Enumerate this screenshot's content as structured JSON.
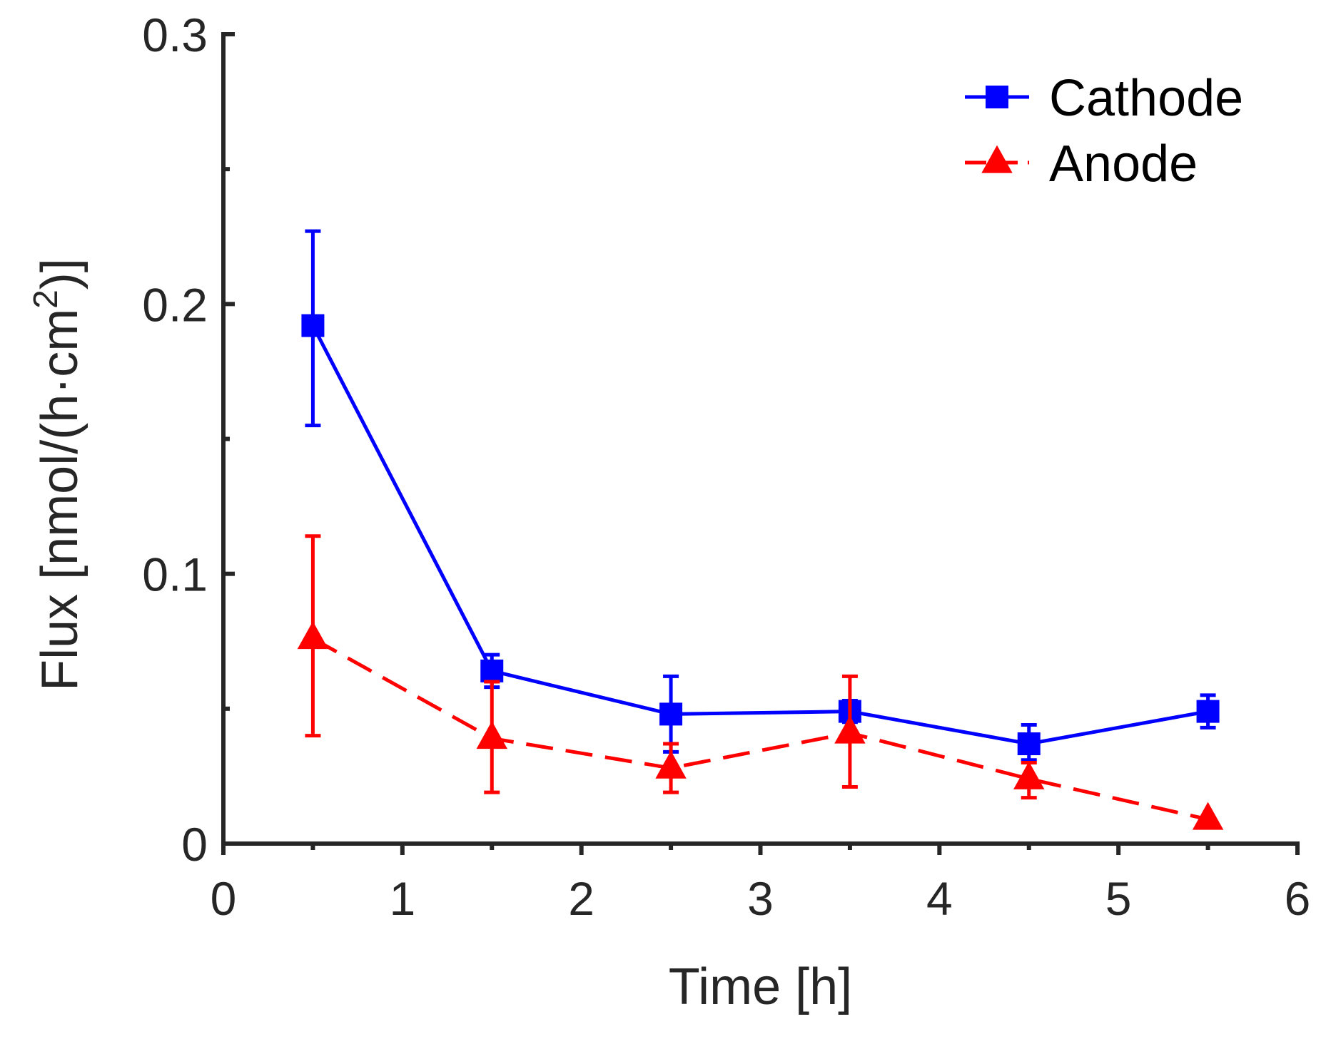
{
  "chart_data": {
    "type": "line",
    "title": "",
    "xlabel": "Time [h]",
    "ylabel_parts": {
      "main": "Flux [nmol/(h·cm",
      "sup": "2",
      "tail": ")]"
    },
    "xlim": [
      0,
      6
    ],
    "ylim": [
      0,
      0.3
    ],
    "xticks": [
      0,
      1,
      2,
      3,
      4,
      5,
      6
    ],
    "xtick_labels": [
      "0",
      "1",
      "2",
      "3",
      "4",
      "5",
      "6"
    ],
    "yticks": [
      0,
      0.1,
      0.2,
      0.3
    ],
    "ytick_labels": [
      "0",
      "0.1",
      "0.2",
      "0.3"
    ],
    "y_minor_ticks": [
      0.05,
      0.15,
      0.25
    ],
    "x_minor_ticks": [
      0.5,
      1.5,
      2.5,
      3.5,
      4.5,
      5.5
    ],
    "grid": false,
    "legend_position": "top-right",
    "series": [
      {
        "name": "Cathode",
        "color": "#0000ff",
        "line_style": "solid",
        "marker": "square",
        "x": [
          0.5,
          1.5,
          2.5,
          3.5,
          4.5,
          5.5
        ],
        "y": [
          0.192,
          0.064,
          0.048,
          0.049,
          0.037,
          0.049
        ],
        "err_low": [
          0.155,
          0.058,
          0.034,
          0.045,
          0.031,
          0.043
        ],
        "err_high": [
          0.227,
          0.07,
          0.062,
          0.053,
          0.044,
          0.055
        ]
      },
      {
        "name": "Anode",
        "color": "#ff0000",
        "line_style": "dashed",
        "marker": "triangle",
        "x": [
          0.5,
          1.5,
          2.5,
          3.5,
          4.5,
          5.5
        ],
        "y": [
          0.076,
          0.039,
          0.028,
          0.041,
          0.024,
          0.009
        ],
        "err_low": [
          0.04,
          0.019,
          0.019,
          0.021,
          0.017,
          0.009
        ],
        "err_high": [
          0.114,
          0.06,
          0.037,
          0.062,
          0.03,
          0.009
        ]
      }
    ]
  }
}
